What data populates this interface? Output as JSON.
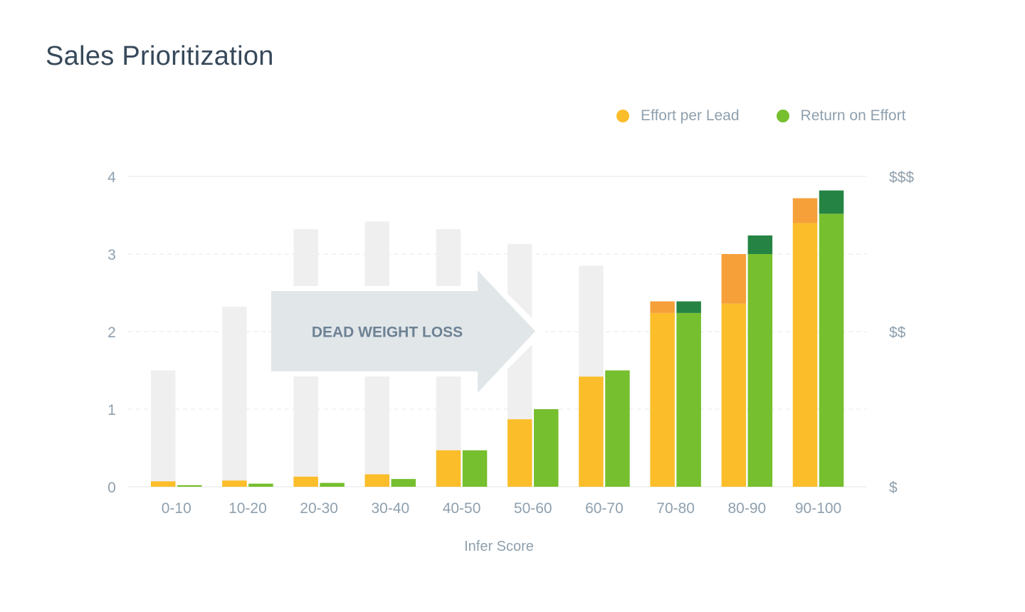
{
  "title": "Sales Prioritization",
  "legend": {
    "effort_label": "Effort per Lead",
    "return_label": "Return on Effort",
    "effort_color": "#fbbd29",
    "return_color": "#76bf2e"
  },
  "colors": {
    "effort": "#fbbd29",
    "effort_top": "#f6a03a",
    "return": "#76bf2e",
    "return_top": "#258443",
    "background_bar": "#efefef",
    "arrow": "#e1e6e9",
    "grid": "#e3e7ea"
  },
  "chart_data": {
    "type": "bar",
    "title": "Sales Prioritization",
    "xlabel": "Infer Score",
    "ylabel": "",
    "ylim": [
      0,
      4
    ],
    "y_ticks": [
      "0",
      "1",
      "2",
      "3",
      "4"
    ],
    "right_axis_ticks": [
      {
        "value": 0,
        "label": "$"
      },
      {
        "value": 2,
        "label": "$$"
      },
      {
        "value": 4,
        "label": "$$$"
      }
    ],
    "categories": [
      "0-10",
      "10-20",
      "20-30",
      "30-40",
      "40-50",
      "50-60",
      "60-70",
      "70-80",
      "80-90",
      "90-100"
    ],
    "background_values": [
      1.5,
      2.32,
      3.32,
      3.42,
      3.32,
      3.13,
      2.85,
      0,
      0,
      0
    ],
    "series": [
      {
        "name": "Effort per Lead",
        "values": [
          0.07,
          0.08,
          0.13,
          0.16,
          0.47,
          0.87,
          1.42,
          2.24,
          2.36,
          3.4
        ],
        "top_values": [
          0,
          0,
          0,
          0,
          0,
          0,
          0,
          0.15,
          0.64,
          0.32
        ]
      },
      {
        "name": "Return on Effort",
        "values": [
          0.02,
          0.04,
          0.05,
          0.1,
          0.47,
          1.0,
          1.5,
          2.24,
          3.0,
          3.52
        ],
        "top_values": [
          0,
          0,
          0,
          0,
          0,
          0,
          0,
          0.15,
          0.24,
          0.3
        ]
      }
    ],
    "annotations": [
      {
        "text": "DEAD WEIGHT LOSS",
        "shape": "arrow-right",
        "from_category": "20-30",
        "to_category": "50-60"
      }
    ],
    "grid": true,
    "legend_position": "top-right"
  }
}
